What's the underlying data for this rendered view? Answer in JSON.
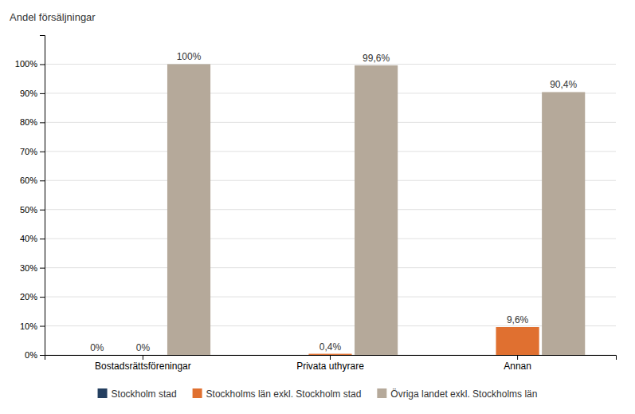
{
  "chart_data": {
    "type": "bar",
    "y_label": "Andel försäljningar",
    "categories": [
      "Bostadsrättsföreningar",
      "Privata uthyrare",
      "Annan"
    ],
    "series": [
      {
        "name": "Stockholm stad",
        "color": "#243f60",
        "values": [
          0.0,
          0.0,
          0.0
        ],
        "value_labels": [
          "0%",
          null,
          null
        ]
      },
      {
        "name": "Stockholms län exkl. Stockholm stad",
        "color": "#e07030",
        "values": [
          0.0,
          0.4,
          9.6
        ],
        "value_labels": [
          "0%",
          "0,4%",
          "9,6%"
        ]
      },
      {
        "name": "Övriga landet exkl. Stockholms län",
        "color": "#b5a99a",
        "values": [
          100.0,
          99.6,
          90.4
        ],
        "value_labels": [
          "100%",
          "99,6%",
          "90,4%"
        ]
      }
    ],
    "ylim": [
      0,
      110
    ],
    "yticks": [
      {
        "value": 0,
        "label": "0%"
      },
      {
        "value": 10,
        "label": "10%"
      },
      {
        "value": 20,
        "label": "20%"
      },
      {
        "value": 30,
        "label": "30%"
      },
      {
        "value": 40,
        "label": "40%"
      },
      {
        "value": 50,
        "label": "50%"
      },
      {
        "value": 60,
        "label": "60%"
      },
      {
        "value": 70,
        "label": "70%"
      },
      {
        "value": 80,
        "label": "80%"
      },
      {
        "value": 90,
        "label": "90%"
      },
      {
        "value": 100,
        "label": "100%"
      }
    ],
    "grid": true,
    "legend": "bottom",
    "data_labels": true
  }
}
